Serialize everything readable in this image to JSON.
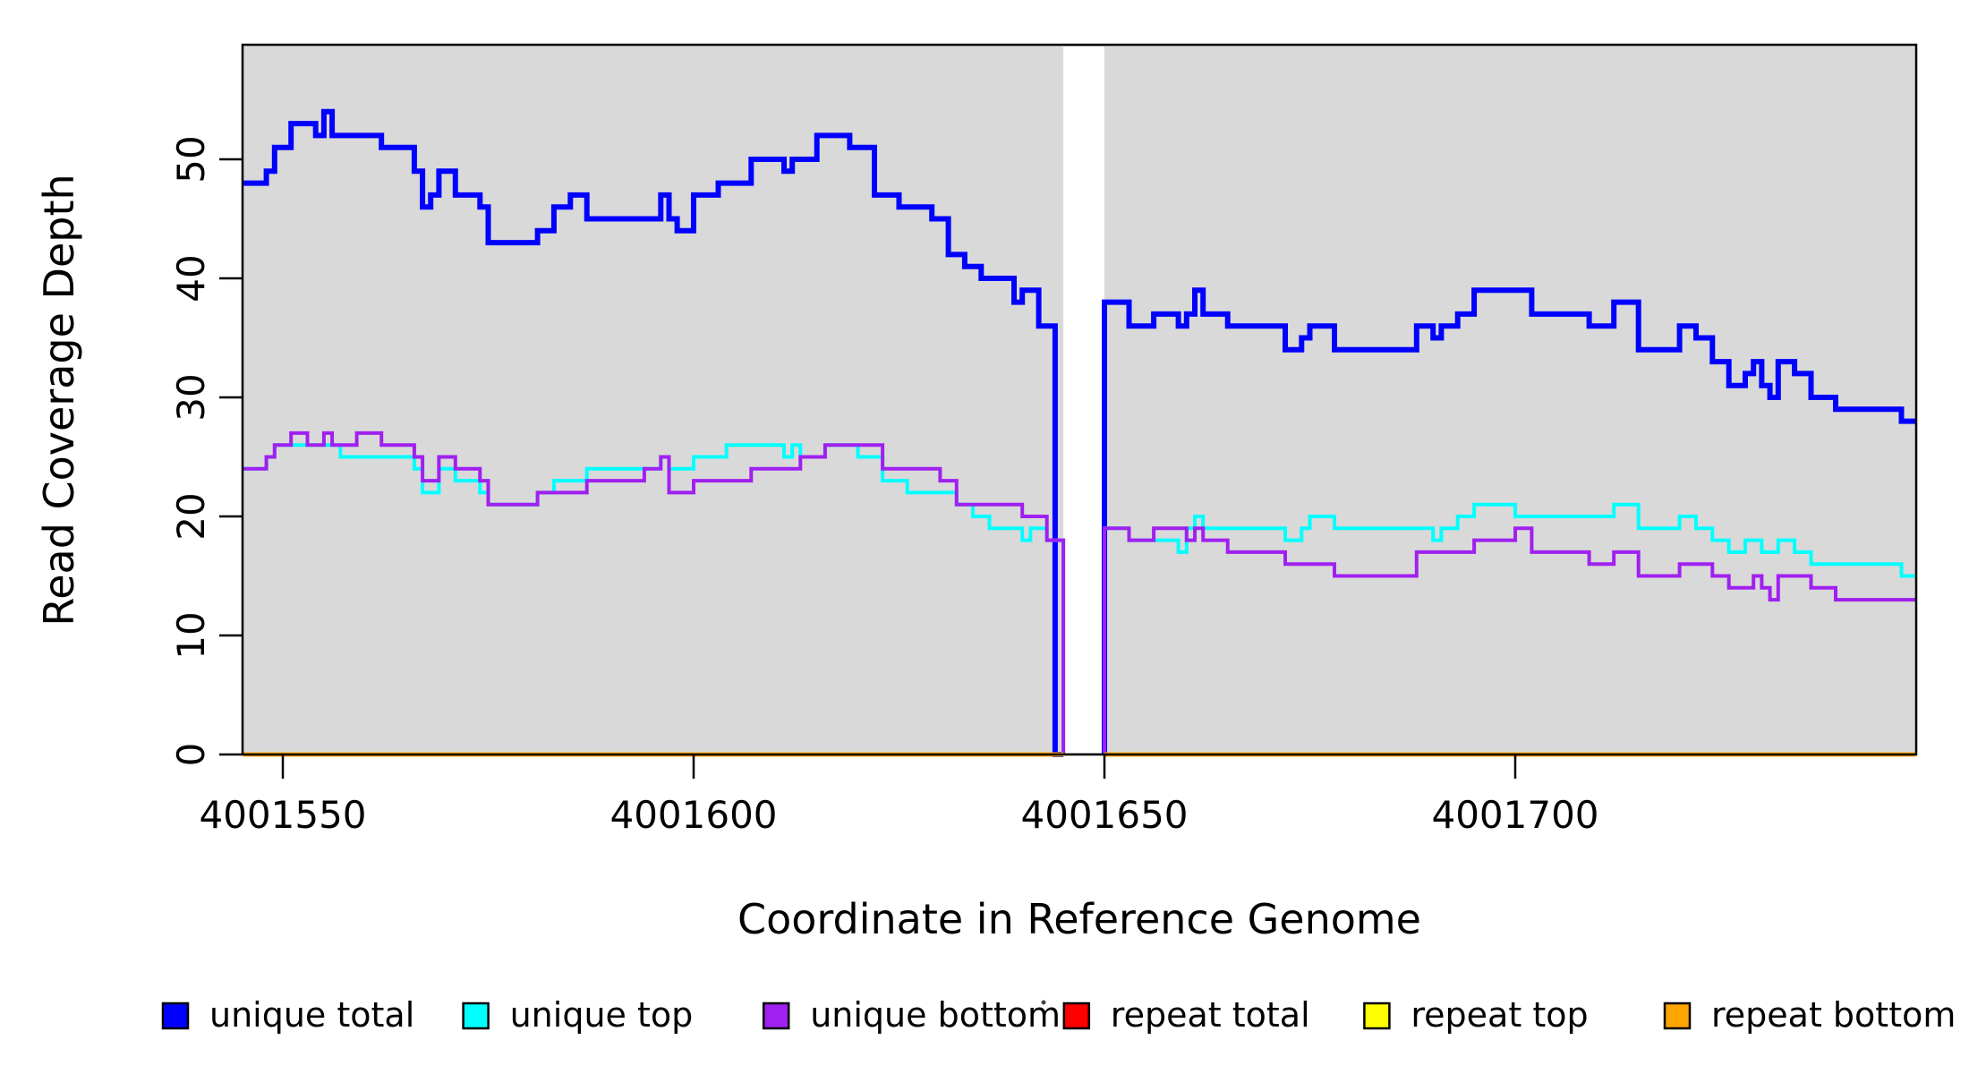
{
  "figure": {
    "background": "#FFFFFF",
    "plot_background": "#D9D9D9",
    "box_color": "#000000",
    "gap_band": {
      "from": 4001645,
      "to": 4001650,
      "color": "#FFFFFF"
    }
  },
  "axes": {
    "x": {
      "label": "Coordinate in Reference Genome",
      "tick_values": [
        4001550,
        4001600,
        4001650,
        4001700
      ],
      "tick_labels": [
        "4001550",
        "4001600",
        "4001650",
        "4001700"
      ],
      "range": [
        4001545.2,
        4001748.7
      ]
    },
    "y": {
      "label": "Read Coverage Depth",
      "tick_values": [
        0,
        10,
        20,
        30,
        40,
        50
      ],
      "tick_labels": [
        "0",
        "10",
        "20",
        "30",
        "40",
        "50"
      ],
      "range": [
        0,
        59.6
      ]
    }
  },
  "legend": {
    "items": [
      {
        "label": "unique total",
        "color": "#0000FF"
      },
      {
        "label": "unique top",
        "color": "#00FFFF"
      },
      {
        "label": "unique bottom",
        "color": "#A020F0"
      },
      {
        "label": "repeat total",
        "color": "#FF0000"
      },
      {
        "label": "repeat top",
        "color": "#FFFF00"
      },
      {
        "label": "repeat bottom",
        "color": "#FFA500"
      }
    ]
  },
  "chart_data": {
    "type": "line",
    "step": true,
    "title": "",
    "xlabel": "Coordinate in Reference Genome",
    "ylabel": "Read Coverage Depth",
    "xlim": [
      4001545.2,
      4001748.7
    ],
    "ylim": [
      0,
      59.6
    ],
    "grid": false,
    "legend_position": "bottom",
    "no_data_gap": [
      4001645,
      4001650
    ],
    "series": [
      {
        "name": "unique total",
        "color": "#0000FF",
        "width": 6,
        "segments": [
          {
            "end": 4001645,
            "points": [
              [
                4001545.2,
                48
              ],
              [
                4001548,
                49
              ],
              [
                4001549,
                51
              ],
              [
                4001551,
                53
              ],
              [
                4001554,
                52
              ],
              [
                4001555,
                54
              ],
              [
                4001556,
                52
              ],
              [
                4001562,
                51
              ],
              [
                4001566,
                49
              ],
              [
                4001567,
                46
              ],
              [
                4001568,
                47
              ],
              [
                4001569,
                49
              ],
              [
                4001571,
                47
              ],
              [
                4001574,
                46
              ],
              [
                4001575,
                43
              ],
              [
                4001581,
                44
              ],
              [
                4001583,
                46
              ],
              [
                4001585,
                47
              ],
              [
                4001587,
                45
              ],
              [
                4001596,
                47
              ],
              [
                4001597,
                45
              ],
              [
                4001598,
                44
              ],
              [
                4001600,
                47
              ],
              [
                4001603,
                48
              ],
              [
                4001607,
                50
              ],
              [
                4001611,
                49
              ],
              [
                4001612,
                50
              ],
              [
                4001615,
                52
              ],
              [
                4001619,
                51
              ],
              [
                4001622,
                47
              ],
              [
                4001625,
                46
              ],
              [
                4001629,
                45
              ],
              [
                4001631,
                42
              ],
              [
                4001633,
                41
              ],
              [
                4001635,
                40
              ],
              [
                4001639,
                38
              ],
              [
                4001640,
                39
              ],
              [
                4001642,
                36
              ],
              [
                4001644,
                0
              ]
            ]
          },
          {
            "end": 4001748.7,
            "points": [
              [
                4001650,
                0
              ],
              [
                4001650,
                38
              ],
              [
                4001653,
                36
              ],
              [
                4001656,
                37
              ],
              [
                4001659,
                36
              ],
              [
                4001660,
                37
              ],
              [
                4001661,
                39
              ],
              [
                4001662,
                37
              ],
              [
                4001665,
                36
              ],
              [
                4001672,
                34
              ],
              [
                4001674,
                35
              ],
              [
                4001675,
                36
              ],
              [
                4001678,
                34
              ],
              [
                4001688,
                36
              ],
              [
                4001690,
                35
              ],
              [
                4001691,
                36
              ],
              [
                4001693,
                37
              ],
              [
                4001695,
                39
              ],
              [
                4001702,
                37
              ],
              [
                4001709,
                36
              ],
              [
                4001712,
                38
              ],
              [
                4001715,
                34
              ],
              [
                4001720,
                36
              ],
              [
                4001722,
                35
              ],
              [
                4001724,
                33
              ],
              [
                4001726,
                31
              ],
              [
                4001728,
                32
              ],
              [
                4001729,
                33
              ],
              [
                4001730,
                31
              ],
              [
                4001731,
                30
              ],
              [
                4001732,
                33
              ],
              [
                4001734,
                32
              ],
              [
                4001736,
                30
              ],
              [
                4001739,
                29
              ],
              [
                4001747,
                28
              ]
            ]
          }
        ]
      },
      {
        "name": "unique top",
        "color": "#00FFFF",
        "width": 4,
        "segments": [
          {
            "end": 4001645,
            "points": [
              [
                4001545.2,
                24
              ],
              [
                4001548,
                25
              ],
              [
                4001549,
                26
              ],
              [
                4001557,
                25
              ],
              [
                4001566,
                24
              ],
              [
                4001567,
                22
              ],
              [
                4001569,
                24
              ],
              [
                4001571,
                23
              ],
              [
                4001574,
                22
              ],
              [
                4001575,
                21
              ],
              [
                4001581,
                22
              ],
              [
                4001583,
                23
              ],
              [
                4001587,
                24
              ],
              [
                4001596,
                25
              ],
              [
                4001597,
                24
              ],
              [
                4001600,
                25
              ],
              [
                4001604,
                26
              ],
              [
                4001611,
                25
              ],
              [
                4001612,
                26
              ],
              [
                4001613,
                25
              ],
              [
                4001616,
                26
              ],
              [
                4001620,
                25
              ],
              [
                4001623,
                23
              ],
              [
                4001626,
                22
              ],
              [
                4001632,
                21
              ],
              [
                4001634,
                20
              ],
              [
                4001636,
                19
              ],
              [
                4001640,
                18
              ],
              [
                4001641,
                19
              ],
              [
                4001643,
                18
              ],
              [
                4001645,
                0
              ]
            ]
          },
          {
            "end": 4001748.7,
            "points": [
              [
                4001650,
                0
              ],
              [
                4001650,
                19
              ],
              [
                4001653,
                18
              ],
              [
                4001659,
                17
              ],
              [
                4001660,
                19
              ],
              [
                4001661,
                20
              ],
              [
                4001662,
                19
              ],
              [
                4001672,
                18
              ],
              [
                4001674,
                19
              ],
              [
                4001675,
                20
              ],
              [
                4001678,
                19
              ],
              [
                4001690,
                18
              ],
              [
                4001691,
                19
              ],
              [
                4001693,
                20
              ],
              [
                4001695,
                21
              ],
              [
                4001700,
                20
              ],
              [
                4001712,
                21
              ],
              [
                4001715,
                19
              ],
              [
                4001720,
                20
              ],
              [
                4001722,
                19
              ],
              [
                4001724,
                18
              ],
              [
                4001726,
                17
              ],
              [
                4001728,
                18
              ],
              [
                4001730,
                17
              ],
              [
                4001732,
                18
              ],
              [
                4001734,
                17
              ],
              [
                4001736,
                16
              ],
              [
                4001747,
                15
              ]
            ]
          }
        ]
      },
      {
        "name": "unique bottom",
        "color": "#A020F0",
        "width": 4,
        "segments": [
          {
            "end": 4001645,
            "points": [
              [
                4001545.2,
                24
              ],
              [
                4001548,
                25
              ],
              [
                4001549,
                26
              ],
              [
                4001551,
                27
              ],
              [
                4001553,
                26
              ],
              [
                4001555,
                27
              ],
              [
                4001556,
                26
              ],
              [
                4001559,
                27
              ],
              [
                4001562,
                26
              ],
              [
                4001566,
                25
              ],
              [
                4001567,
                23
              ],
              [
                4001569,
                25
              ],
              [
                4001571,
                24
              ],
              [
                4001574,
                23
              ],
              [
                4001575,
                21
              ],
              [
                4001581,
                22
              ],
              [
                4001587,
                23
              ],
              [
                4001594,
                24
              ],
              [
                4001596,
                25
              ],
              [
                4001597,
                22
              ],
              [
                4001600,
                23
              ],
              [
                4001607,
                24
              ],
              [
                4001613,
                25
              ],
              [
                4001616,
                26
              ],
              [
                4001623,
                24
              ],
              [
                4001630,
                23
              ],
              [
                4001632,
                21
              ],
              [
                4001640,
                20
              ],
              [
                4001643,
                18
              ],
              [
                4001645,
                0
              ]
            ]
          },
          {
            "end": 4001748.7,
            "points": [
              [
                4001650,
                0
              ],
              [
                4001650,
                19
              ],
              [
                4001653,
                18
              ],
              [
                4001656,
                19
              ],
              [
                4001660,
                18
              ],
              [
                4001661,
                19
              ],
              [
                4001662,
                18
              ],
              [
                4001665,
                17
              ],
              [
                4001672,
                16
              ],
              [
                4001678,
                15
              ],
              [
                4001688,
                17
              ],
              [
                4001695,
                18
              ],
              [
                4001700,
                19
              ],
              [
                4001702,
                17
              ],
              [
                4001709,
                16
              ],
              [
                4001712,
                17
              ],
              [
                4001715,
                15
              ],
              [
                4001720,
                16
              ],
              [
                4001724,
                15
              ],
              [
                4001726,
                14
              ],
              [
                4001729,
                15
              ],
              [
                4001730,
                14
              ],
              [
                4001731,
                13
              ],
              [
                4001732,
                15
              ],
              [
                4001736,
                14
              ],
              [
                4001739,
                13
              ]
            ]
          }
        ]
      },
      {
        "name": "repeat total",
        "color": "#FF0000",
        "width": 4,
        "segments": [
          {
            "end": 4001645,
            "points": [
              [
                4001545.2,
                0
              ]
            ]
          },
          {
            "end": 4001748.7,
            "points": [
              [
                4001650,
                0
              ]
            ]
          }
        ]
      },
      {
        "name": "repeat top",
        "color": "#FFFF00",
        "width": 4,
        "segments": [
          {
            "end": 4001645,
            "points": [
              [
                4001545.2,
                0
              ]
            ]
          },
          {
            "end": 4001748.7,
            "points": [
              [
                4001650,
                0
              ]
            ]
          }
        ]
      },
      {
        "name": "repeat bottom",
        "color": "#FFA500",
        "width": 5,
        "segments": [
          {
            "end": 4001645,
            "points": [
              [
                4001545.2,
                0
              ]
            ]
          },
          {
            "end": 4001748.7,
            "points": [
              [
                4001650,
                0
              ]
            ]
          }
        ]
      }
    ]
  }
}
